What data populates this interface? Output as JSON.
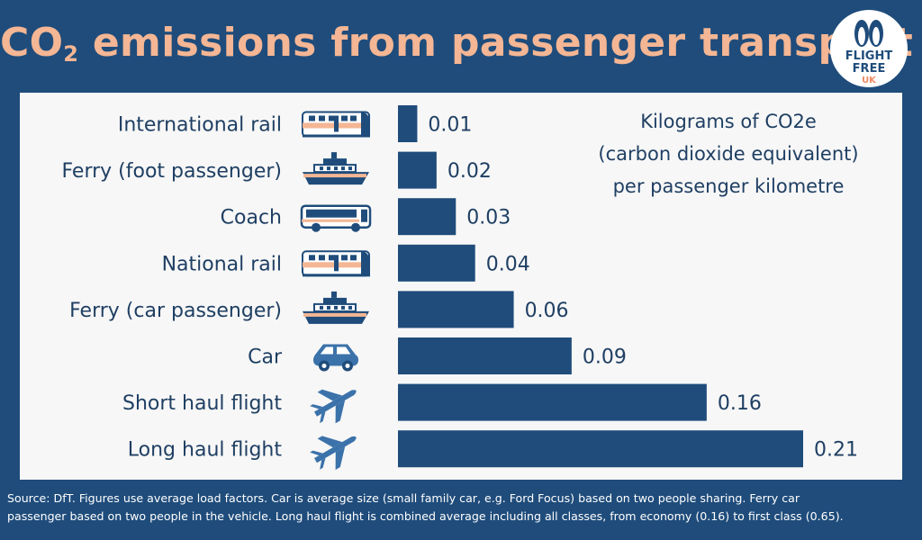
{
  "title": {
    "main": "CO",
    "subscript": "2",
    "rest": " emissions from passenger transport"
  },
  "logo": {
    "line1": "FLIGHT",
    "line2": "FREE",
    "line3": "UK",
    "icon": "penguins-logo-icon"
  },
  "unit_note": [
    "Kilograms of CO2e",
    "(carbon dioxide equivalent)",
    "per passenger kilometre"
  ],
  "chart_data": {
    "type": "bar",
    "orientation": "horizontal",
    "categories": [
      "International rail",
      "Ferry (foot passenger)",
      "Coach",
      "National rail",
      "Ferry (car passenger)",
      "Car",
      "Short haul flight",
      "Long haul flight"
    ],
    "values": [
      0.01,
      0.02,
      0.03,
      0.04,
      0.06,
      0.09,
      0.16,
      0.21
    ],
    "value_labels": [
      "0.01",
      "0.02",
      "0.03",
      "0.04",
      "0.06",
      "0.09",
      "0.16",
      "0.21"
    ],
    "icons": [
      "train-icon",
      "ferry-icon",
      "coach-icon",
      "train-icon",
      "ferry-icon",
      "car-icon",
      "plane-icon",
      "plane-icon"
    ],
    "xlim": [
      0,
      0.21
    ],
    "grid": false,
    "bar_color": "#1f4c7b"
  },
  "footnote": [
    "Source: DfT. Figures use average load factors. Car is average size (small family car, e.g. Ford Focus) based on two people sharing. Ferry car",
    "passenger based on two people in the vehicle. Long haul flight is combined average including all classes, from economy (0.16) to first class (0.65)."
  ],
  "colors": {
    "background": "#1f4c7b",
    "title": "#f4b694",
    "panel": "#f7f7f7",
    "text": "#1f3f63",
    "accent": "#f4b694"
  }
}
